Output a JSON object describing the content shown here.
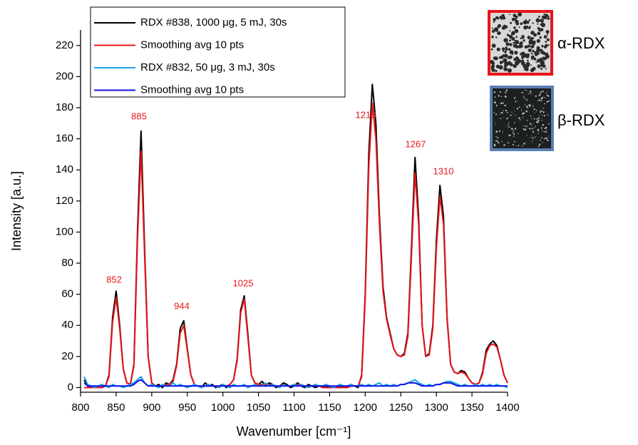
{
  "chart_data": {
    "type": "line",
    "x_label": "Wavenumber [cm⁻¹]",
    "y_label": "Intensity [a.u.]",
    "xlim": [
      800,
      1400
    ],
    "ylim": [
      -3,
      230
    ],
    "xticks": [
      800,
      850,
      900,
      950,
      1000,
      1050,
      1100,
      1150,
      1200,
      1250,
      1300,
      1350,
      1400
    ],
    "yticks": [
      0,
      20,
      40,
      60,
      80,
      100,
      120,
      140,
      160,
      180,
      200,
      220
    ],
    "legend_position": "top-left",
    "x": [
      805,
      810,
      815,
      820,
      825,
      830,
      835,
      840,
      845,
      850,
      855,
      860,
      865,
      870,
      875,
      880,
      885,
      890,
      895,
      900,
      905,
      910,
      915,
      920,
      925,
      930,
      935,
      940,
      945,
      950,
      955,
      960,
      965,
      970,
      975,
      980,
      985,
      990,
      995,
      1000,
      1005,
      1010,
      1015,
      1020,
      1025,
      1030,
      1035,
      1040,
      1045,
      1050,
      1055,
      1060,
      1065,
      1070,
      1075,
      1080,
      1085,
      1090,
      1095,
      1100,
      1105,
      1110,
      1115,
      1120,
      1125,
      1130,
      1135,
      1140,
      1145,
      1150,
      1155,
      1160,
      1165,
      1170,
      1175,
      1180,
      1185,
      1190,
      1195,
      1200,
      1205,
      1210,
      1215,
      1220,
      1225,
      1230,
      1235,
      1240,
      1245,
      1250,
      1255,
      1260,
      1265,
      1270,
      1275,
      1280,
      1285,
      1290,
      1295,
      1300,
      1305,
      1310,
      1315,
      1320,
      1325,
      1330,
      1335,
      1340,
      1345,
      1350,
      1355,
      1360,
      1365,
      1370,
      1375,
      1380,
      1385,
      1390,
      1395,
      1400
    ],
    "series": [
      {
        "name": "RDX #838, 1000 μg, 5 mJ, 30s",
        "color": "#000000",
        "values": [
          5,
          1,
          0,
          0,
          0,
          0,
          1,
          8,
          45,
          62,
          40,
          12,
          3,
          2,
          15,
          100,
          165,
          90,
          20,
          3,
          1,
          2,
          0,
          3,
          2,
          5,
          15,
          38,
          43,
          25,
          8,
          2,
          1,
          0,
          3,
          1,
          2,
          0,
          1,
          2,
          0,
          2,
          5,
          18,
          50,
          59,
          35,
          8,
          3,
          2,
          4,
          1,
          3,
          2,
          0,
          1,
          3,
          2,
          0,
          1,
          3,
          1,
          0,
          2,
          1,
          0,
          1,
          0,
          1,
          0,
          1,
          0,
          1,
          0,
          1,
          2,
          1,
          0,
          8,
          60,
          150,
          195,
          170,
          110,
          65,
          45,
          35,
          25,
          21,
          20,
          22,
          35,
          90,
          148,
          110,
          40,
          20,
          22,
          40,
          95,
          130,
          110,
          45,
          15,
          10,
          9,
          11,
          10,
          6,
          3,
          2,
          3,
          10,
          24,
          28,
          30,
          27,
          18,
          8,
          3
        ]
      },
      {
        "name": "Smoothing avg 10 pts",
        "color": "#e8141a",
        "values": [
          0,
          0,
          0,
          0,
          0,
          0,
          1,
          7,
          42,
          58,
          38,
          12,
          3,
          2,
          14,
          95,
          152,
          85,
          20,
          3,
          1,
          1,
          1,
          2,
          2,
          4,
          14,
          35,
          40,
          24,
          8,
          2,
          1,
          1,
          1,
          1,
          1,
          1,
          1,
          1,
          1,
          2,
          5,
          17,
          48,
          57,
          33,
          8,
          3,
          2,
          2,
          2,
          2,
          1,
          1,
          1,
          2,
          1,
          1,
          1,
          2,
          1,
          1,
          1,
          1,
          1,
          1,
          0,
          0,
          0,
          0,
          0,
          0,
          0,
          0,
          1,
          1,
          1,
          7,
          57,
          142,
          183,
          160,
          105,
          62,
          44,
          34,
          25,
          21,
          20,
          21,
          33,
          85,
          138,
          105,
          40,
          20,
          21,
          38,
          90,
          123,
          105,
          44,
          15,
          10,
          9,
          10,
          9,
          6,
          3,
          2,
          3,
          9,
          22,
          27,
          28,
          26,
          18,
          8,
          3
        ]
      },
      {
        "name": "RDX #832, 50 μg, 3 mJ, 30s",
        "color": "#1aa3ea",
        "values": [
          7,
          2,
          1,
          0,
          1,
          2,
          1,
          0,
          2,
          1,
          1,
          0,
          1,
          2,
          3,
          5,
          7,
          3,
          1,
          2,
          1,
          0,
          2,
          1,
          1,
          3,
          1,
          2,
          1,
          0,
          1,
          2,
          1,
          0,
          1,
          2,
          1,
          1,
          0,
          2,
          1,
          0,
          2,
          1,
          1,
          2,
          0,
          1,
          2,
          1,
          1,
          3,
          1,
          2,
          1,
          0,
          2,
          1,
          1,
          2,
          1,
          2,
          1,
          0,
          1,
          2,
          1,
          1,
          2,
          1,
          0,
          1,
          2,
          1,
          1,
          2,
          1,
          1,
          2,
          1,
          2,
          1,
          2,
          3,
          1,
          2,
          1,
          2,
          1,
          2,
          2,
          3,
          4,
          5,
          3,
          2,
          1,
          2,
          1,
          2,
          2,
          3,
          4,
          4,
          3,
          2,
          1,
          2,
          1,
          1,
          2,
          1,
          2,
          1,
          2,
          1,
          2,
          1,
          1,
          0
        ]
      },
      {
        "name": "Smoothing avg 10 pts",
        "color": "#1212e8",
        "values": [
          3,
          1,
          1,
          1,
          1,
          1,
          1,
          1,
          1,
          1,
          1,
          1,
          1,
          1,
          2,
          4,
          5,
          3,
          1,
          1,
          1,
          1,
          1,
          1,
          1,
          1,
          1,
          1,
          1,
          1,
          1,
          1,
          1,
          1,
          1,
          1,
          1,
          1,
          1,
          1,
          1,
          1,
          1,
          1,
          1,
          1,
          1,
          1,
          1,
          1,
          1,
          1,
          1,
          1,
          1,
          1,
          1,
          1,
          1,
          1,
          1,
          1,
          1,
          1,
          1,
          1,
          1,
          1,
          1,
          1,
          1,
          1,
          1,
          1,
          1,
          1,
          1,
          1,
          1,
          1,
          1,
          1,
          1,
          1,
          1,
          1,
          1,
          1,
          1,
          2,
          2,
          3,
          3,
          3,
          2,
          1,
          1,
          1,
          1,
          2,
          2,
          3,
          3,
          3,
          2,
          1,
          1,
          1,
          1,
          1,
          1,
          1,
          1,
          1,
          1,
          1,
          1,
          1,
          1,
          1
        ]
      }
    ],
    "annotations": [
      "852",
      "885",
      "944",
      "1025",
      "1218",
      "1267",
      "1310"
    ],
    "insets": [
      "α-RDX",
      "β-RDX"
    ]
  }
}
